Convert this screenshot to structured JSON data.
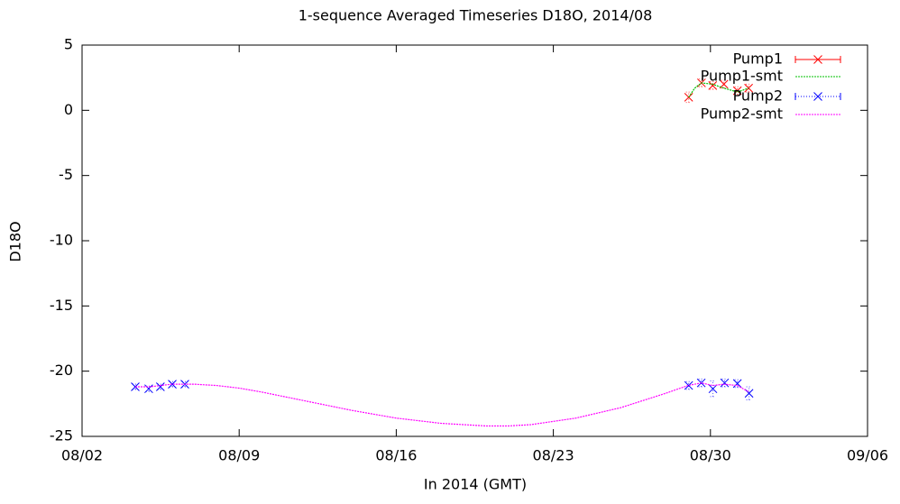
{
  "chart_data": {
    "type": "scatter",
    "title": "1-sequence Averaged Timeseries D18O, 2014/08",
    "x_label": "In 2014 (GMT)",
    "y_label": "D18O",
    "xlim": [
      2,
      37
    ],
    "xticks": [
      {
        "value": 2,
        "label": "08/02"
      },
      {
        "value": 9,
        "label": "08/09"
      },
      {
        "value": 16,
        "label": "08/16"
      },
      {
        "value": 23,
        "label": "08/23"
      },
      {
        "value": 30,
        "label": "08/30"
      },
      {
        "value": 37,
        "label": "09/06"
      }
    ],
    "ylim": [
      -25,
      5
    ],
    "yticks": [
      5,
      0,
      -5,
      -10,
      -15,
      -20,
      -25
    ],
    "legend": "top-right",
    "series": [
      {
        "name": "Pump1",
        "color": "#ff0000",
        "x": [
          29.03,
          29.6,
          30.1,
          30.6,
          31.2,
          31.7
        ],
        "values": [
          1.0,
          2.1,
          1.9,
          2.0,
          1.5,
          1.7
        ],
        "errors": [
          0.4,
          0.3,
          0.3,
          0.3,
          0.3,
          0.3
        ]
      },
      {
        "name": "Pump1-smt",
        "color": "#00c000",
        "x": [
          29.03,
          29.3,
          29.6,
          30.1,
          30.6,
          31.2,
          31.7
        ],
        "values": [
          1.0,
          1.7,
          2.1,
          2.0,
          1.7,
          1.4,
          1.7
        ]
      },
      {
        "name": "Pump2",
        "color": "#0000ff",
        "x": [
          4.37,
          4.97,
          5.49,
          6.02,
          6.58,
          29.03,
          29.59,
          30.11,
          30.63,
          31.2,
          31.72
        ],
        "values": [
          -21.2,
          -21.35,
          -21.2,
          -21.0,
          -21.0,
          -21.1,
          -20.9,
          -21.35,
          -20.9,
          -20.95,
          -21.7
        ],
        "errors": [
          0.2,
          0.2,
          0.2,
          0.2,
          0.2,
          0.3,
          0.3,
          0.6,
          0.3,
          0.3,
          0.5
        ]
      },
      {
        "name": "Pump2-smt",
        "color": "#ff00ff",
        "x": [
          4.37,
          5,
          6,
          7,
          8,
          9,
          10,
          12,
          14,
          16,
          18,
          20,
          21,
          22,
          24,
          26,
          28,
          29,
          29.6,
          30.1,
          30.6,
          31.2,
          31.72
        ],
        "values": [
          -21.2,
          -21.2,
          -21.0,
          -21.0,
          -21.1,
          -21.3,
          -21.6,
          -22.3,
          -23.0,
          -23.6,
          -24.0,
          -24.2,
          -24.2,
          -24.1,
          -23.6,
          -22.8,
          -21.7,
          -21.1,
          -20.9,
          -21.1,
          -21.0,
          -21.1,
          -21.6
        ]
      }
    ]
  }
}
